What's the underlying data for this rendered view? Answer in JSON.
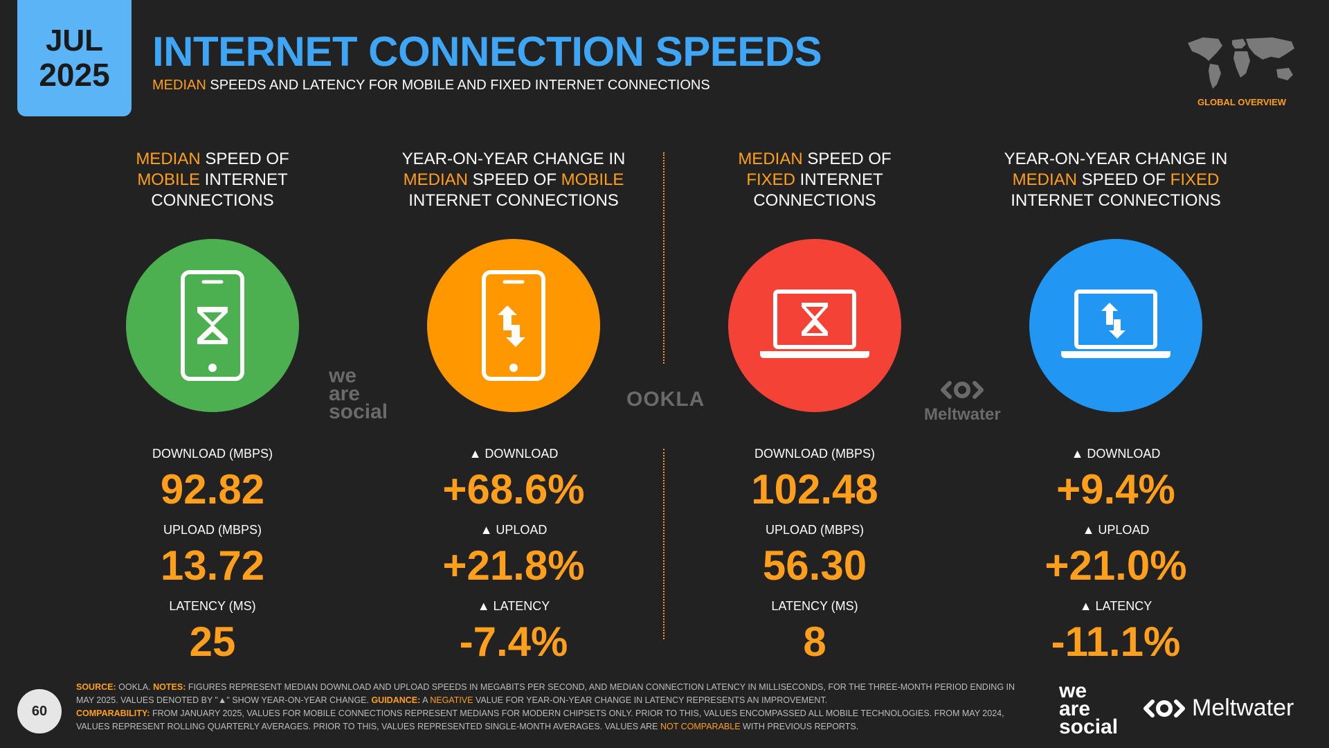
{
  "date": {
    "month": "JUL",
    "year": "2025"
  },
  "title": "INTERNET CONNECTION SPEEDS",
  "subtitle": {
    "highlight": "MEDIAN",
    "rest": " SPEEDS AND LATENCY FOR MOBILE AND FIXED INTERNET CONNECTIONS"
  },
  "global_tag": "GLOBAL OVERVIEW",
  "colors": {
    "green": "#4caf50",
    "orange": "#ff9800",
    "red": "#f44336",
    "blue": "#2196f3",
    "accent": "#ff9f1c",
    "title": "#3fa6f5"
  },
  "columns": [
    {
      "head": [
        [
          {
            "t": "MEDIAN",
            "o": true
          },
          {
            "t": " SPEED OF",
            "o": false
          }
        ],
        [
          {
            "t": "MOBILE",
            "o": true
          },
          {
            "t": " INTERNET",
            "o": false
          }
        ],
        [
          {
            "t": "CONNECTIONS",
            "o": false
          }
        ]
      ],
      "icon": "mobile-hourglass-icon",
      "stats": [
        {
          "label": "DOWNLOAD (MBPS)",
          "value": "92.82"
        },
        {
          "label": "UPLOAD (MBPS)",
          "value": "13.72"
        },
        {
          "label": "LATENCY (MS)",
          "value": "25"
        }
      ]
    },
    {
      "head": [
        [
          {
            "t": "YEAR-ON-YEAR CHANGE IN",
            "o": false
          }
        ],
        [
          {
            "t": "MEDIAN",
            "o": true
          },
          {
            "t": " SPEED OF ",
            "o": false
          },
          {
            "t": "MOBILE",
            "o": true
          }
        ],
        [
          {
            "t": "INTERNET CONNECTIONS",
            "o": false
          }
        ]
      ],
      "icon": "mobile-arrows-icon",
      "stats": [
        {
          "label": "▲ DOWNLOAD",
          "value": "+68.6%"
        },
        {
          "label": "▲ UPLOAD",
          "value": "+21.8%"
        },
        {
          "label": "▲ LATENCY",
          "value": "-7.4%"
        }
      ]
    },
    {
      "head": [
        [
          {
            "t": "MEDIAN",
            "o": true
          },
          {
            "t": " SPEED OF",
            "o": false
          }
        ],
        [
          {
            "t": "FIXED",
            "o": true
          },
          {
            "t": " INTERNET",
            "o": false
          }
        ],
        [
          {
            "t": "CONNECTIONS",
            "o": false
          }
        ]
      ],
      "icon": "laptop-hourglass-icon",
      "stats": [
        {
          "label": "DOWNLOAD (MBPS)",
          "value": "102.48"
        },
        {
          "label": "UPLOAD (MBPS)",
          "value": "56.30"
        },
        {
          "label": "LATENCY (MS)",
          "value": "8"
        }
      ]
    },
    {
      "head": [
        [
          {
            "t": "YEAR-ON-YEAR CHANGE IN",
            "o": false
          }
        ],
        [
          {
            "t": "MEDIAN",
            "o": true
          },
          {
            "t": " SPEED OF ",
            "o": false
          },
          {
            "t": "FIXED",
            "o": true
          }
        ],
        [
          {
            "t": "INTERNET CONNECTIONS",
            "o": false
          }
        ]
      ],
      "icon": "laptop-arrows-icon",
      "stats": [
        {
          "label": "▲ DOWNLOAD",
          "value": "+9.4%"
        },
        {
          "label": "▲ UPLOAD",
          "value": "+21.0%"
        },
        {
          "label": "▲ LATENCY",
          "value": "-11.1%"
        }
      ]
    }
  ],
  "watermarks": {
    "was": [
      "we",
      "are",
      "social"
    ],
    "ookla": "OOKLA",
    "meltwater": "Meltwater"
  },
  "footer": {
    "page": "60",
    "source_label": "SOURCE:",
    "source": " OOKLA. ",
    "notes_label": "NOTES:",
    "notes": " FIGURES REPRESENT MEDIAN DOWNLOAD AND UPLOAD SPEEDS IN MEGABITS PER SECOND, AND MEDIAN CONNECTION LATENCY IN MILLISECONDS, FOR THE THREE-MONTH PERIOD ENDING IN MAY 2025. VALUES DENOTED BY \"▲\" SHOW YEAR-ON-YEAR CHANGE. ",
    "guidance_label": "GUIDANCE:",
    "guidance_a": " A ",
    "guidance_neg": "NEGATIVE",
    "guidance_b": " VALUE FOR YEAR-ON-YEAR CHANGE IN LATENCY REPRESENTS AN IMPROVEMENT.",
    "comparability_label": "COMPARABILITY:",
    "comparability": " FROM JANUARY 2025, VALUES FOR MOBILE CONNECTIONS REPRESENT MEDIANS FOR MODERN CHIPSETS ONLY. PRIOR TO THIS, VALUES ENCOMPASSED ALL MOBILE TECHNOLOGIES. FROM MAY 2024, VALUES REPRESENT ROLLING QUARTERLY AVERAGES. PRIOR TO THIS, VALUES REPRESENTED SINGLE-MONTH AVERAGES. VALUES ARE ",
    "not_comparable": "NOT COMPARABLE",
    "comparability_end": " WITH PREVIOUS REPORTS."
  },
  "logos": {
    "was": [
      "we",
      "are",
      "social"
    ],
    "meltwater": "Meltwater"
  }
}
